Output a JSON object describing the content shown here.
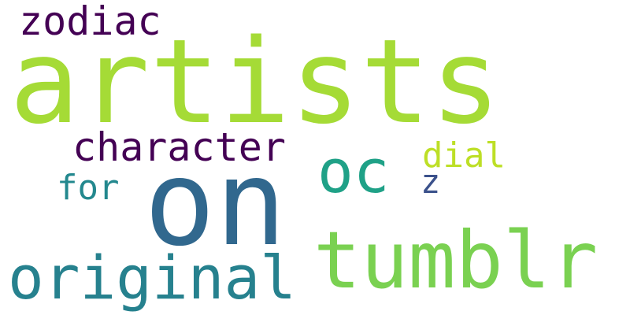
{
  "words": [
    {
      "text": "artists",
      "color": "#a5db36"
    },
    {
      "text": "on",
      "color": "#31688e"
    },
    {
      "text": "tumblr",
      "color": "#7ad151"
    },
    {
      "text": "original",
      "color": "#26818e"
    },
    {
      "text": "oc",
      "color": "#1fa187"
    },
    {
      "text": "character",
      "color": "#440154"
    },
    {
      "text": "zodiac",
      "color": "#440154"
    },
    {
      "text": "dial",
      "color": "#bddf26"
    },
    {
      "text": "for",
      "color": "#23888e"
    },
    {
      "text": "z",
      "color": "#3b518b"
    }
  ]
}
